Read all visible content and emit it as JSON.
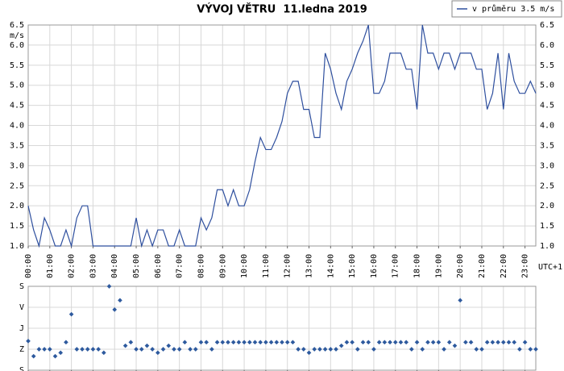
{
  "chart_data": [
    {
      "type": "line",
      "title": "VÝVOJ VĚTRU  11.ledna 2019",
      "y_label": "m/s",
      "x_label": "UTC+1",
      "grid": true,
      "legend": "top-right",
      "x": [
        0,
        0.25,
        0.5,
        0.75,
        1,
        1.25,
        1.5,
        1.75,
        2,
        2.25,
        2.5,
        2.75,
        3,
        3.25,
        3.5,
        3.75,
        4,
        4.25,
        4.5,
        4.75,
        5,
        5.25,
        5.5,
        5.75,
        6,
        6.25,
        6.5,
        6.75,
        7,
        7.25,
        7.5,
        7.75,
        8,
        8.25,
        8.5,
        8.75,
        9,
        9.25,
        9.5,
        9.75,
        10,
        10.25,
        10.5,
        10.75,
        11,
        11.25,
        11.5,
        11.75,
        12,
        12.25,
        12.5,
        12.75,
        13,
        13.25,
        13.5,
        13.75,
        14,
        14.25,
        14.5,
        14.75,
        15,
        15.25,
        15.5,
        15.75,
        16,
        16.25,
        16.5,
        16.75,
        17,
        17.25,
        17.5,
        17.75,
        18,
        18.25,
        18.5,
        18.75,
        19,
        19.25,
        19.5,
        19.75,
        20,
        20.25,
        20.5,
        20.75,
        21,
        21.25,
        21.5,
        21.75,
        22,
        22.25,
        22.5,
        22.75,
        23,
        23.25,
        23.5
      ],
      "series": [
        {
          "name": "v průměru 3.5 m/s",
          "color": "#2e4f9e",
          "values": [
            2.0,
            1.4,
            1.0,
            1.7,
            1.4,
            1.0,
            1.0,
            1.4,
            1.0,
            1.7,
            2.0,
            2.0,
            1.0,
            1.0,
            1.0,
            1.0,
            1.0,
            1.0,
            1.0,
            1.0,
            1.7,
            1.0,
            1.4,
            1.0,
            1.4,
            1.4,
            1.0,
            1.0,
            1.4,
            1.0,
            1.0,
            1.0,
            1.7,
            1.4,
            1.7,
            2.4,
            2.4,
            2.0,
            2.4,
            2.0,
            2.0,
            2.4,
            3.1,
            3.7,
            3.4,
            3.4,
            3.7,
            4.1,
            4.8,
            5.1,
            5.1,
            4.4,
            4.4,
            3.7,
            3.7,
            5.8,
            5.4,
            4.8,
            4.4,
            5.1,
            5.4,
            5.8,
            6.1,
            6.5,
            4.8,
            4.8,
            5.1,
            5.8,
            5.8,
            5.8,
            5.4,
            5.4,
            4.4,
            6.5,
            5.8,
            5.8,
            5.4,
            5.8,
            5.8,
            5.4,
            5.8,
            5.8,
            5.8,
            5.4,
            5.4,
            4.4,
            4.8,
            5.8,
            4.4,
            5.8,
            5.1,
            4.8,
            4.8,
            5.1,
            4.8
          ]
        }
      ],
      "xlim": [
        0,
        23.5
      ],
      "xticks": [
        {
          "value": 0,
          "label": "00:00"
        },
        {
          "value": 1,
          "label": "01:00"
        },
        {
          "value": 2,
          "label": "02:00"
        },
        {
          "value": 3,
          "label": "03:00"
        },
        {
          "value": 4,
          "label": "04:00"
        },
        {
          "value": 5,
          "label": "05:00"
        },
        {
          "value": 6,
          "label": "06:00"
        },
        {
          "value": 7,
          "label": "07:00"
        },
        {
          "value": 8,
          "label": "08:00"
        },
        {
          "value": 9,
          "label": "09:00"
        },
        {
          "value": 10,
          "label": "10:00"
        },
        {
          "value": 11,
          "label": "11:00"
        },
        {
          "value": 12,
          "label": "12:00"
        },
        {
          "value": 13,
          "label": "13:00"
        },
        {
          "value": 14,
          "label": "14:00"
        },
        {
          "value": 15,
          "label": "15:00"
        },
        {
          "value": 16,
          "label": "16:00"
        },
        {
          "value": 17,
          "label": "17:00"
        },
        {
          "value": 18,
          "label": "18:00"
        },
        {
          "value": 19,
          "label": "19:00"
        },
        {
          "value": 20,
          "label": "20:00"
        },
        {
          "value": 21,
          "label": "21:00"
        },
        {
          "value": 22,
          "label": "22:00"
        },
        {
          "value": 23,
          "label": "23:00"
        }
      ],
      "ylim": [
        1,
        6.5
      ],
      "yticks": [
        {
          "value": 1,
          "label": "1.0"
        },
        1.5,
        {
          "value": 2,
          "label": "2.0"
        },
        2.5,
        {
          "value": 3,
          "label": "3.0"
        },
        3.5,
        {
          "value": 4,
          "label": "4.0"
        },
        4.5,
        {
          "value": 5,
          "label": "5.0"
        },
        5.5,
        {
          "value": 6,
          "label": "6.0"
        },
        6.5
      ]
    },
    {
      "type": "scatter",
      "grid": true,
      "color": "#2e5a9e",
      "x": [
        0,
        0.25,
        0.5,
        0.75,
        1,
        1.25,
        1.5,
        1.75,
        2,
        2.25,
        2.5,
        2.75,
        3,
        3.25,
        3.5,
        3.75,
        4,
        4.25,
        4.5,
        4.75,
        5,
        5.25,
        5.5,
        5.75,
        6,
        6.25,
        6.5,
        6.75,
        7,
        7.25,
        7.5,
        7.75,
        8,
        8.25,
        8.5,
        8.75,
        9,
        9.25,
        9.5,
        9.75,
        10,
        10.25,
        10.5,
        10.75,
        11,
        11.25,
        11.5,
        11.75,
        12,
        12.25,
        12.5,
        12.75,
        13,
        13.25,
        13.5,
        13.75,
        14,
        14.25,
        14.5,
        14.75,
        15,
        15.25,
        15.5,
        15.75,
        16,
        16.25,
        16.5,
        16.75,
        17,
        17.25,
        17.5,
        17.75,
        18,
        18.25,
        18.5,
        18.75,
        19,
        19.25,
        19.5,
        19.75,
        20,
        20.25,
        20.5,
        20.75,
        21,
        21.25,
        21.5,
        21.75,
        22,
        22.25,
        22.5,
        22.75,
        23,
        23.25,
        23.5
      ],
      "values": [
        235,
        300,
        270,
        270,
        270,
        300,
        285,
        240,
        120,
        270,
        270,
        270,
        270,
        270,
        285,
        0,
        100,
        60,
        255,
        240,
        270,
        270,
        255,
        270,
        285,
        270,
        255,
        270,
        270,
        240,
        270,
        270,
        240,
        240,
        270,
        240,
        240,
        240,
        240,
        240,
        240,
        240,
        240,
        240,
        240,
        240,
        240,
        240,
        240,
        240,
        270,
        270,
        285,
        270,
        270,
        270,
        270,
        270,
        255,
        240,
        240,
        270,
        240,
        240,
        270,
        240,
        240,
        240,
        240,
        240,
        240,
        270,
        240,
        270,
        240,
        240,
        240,
        270,
        240,
        255,
        60,
        240,
        240,
        270,
        270,
        240,
        240,
        240,
        240,
        240,
        240,
        270,
        240,
        270,
        270
      ],
      "xlim": [
        0,
        23.5
      ],
      "ylim": [
        360,
        0
      ],
      "yticks": [
        {
          "value": 0,
          "label": "S"
        },
        {
          "value": 90,
          "label": "V"
        },
        {
          "value": 180,
          "label": "J"
        },
        {
          "value": 270,
          "label": "Z"
        },
        {
          "value": 360,
          "label": "S"
        }
      ]
    }
  ]
}
